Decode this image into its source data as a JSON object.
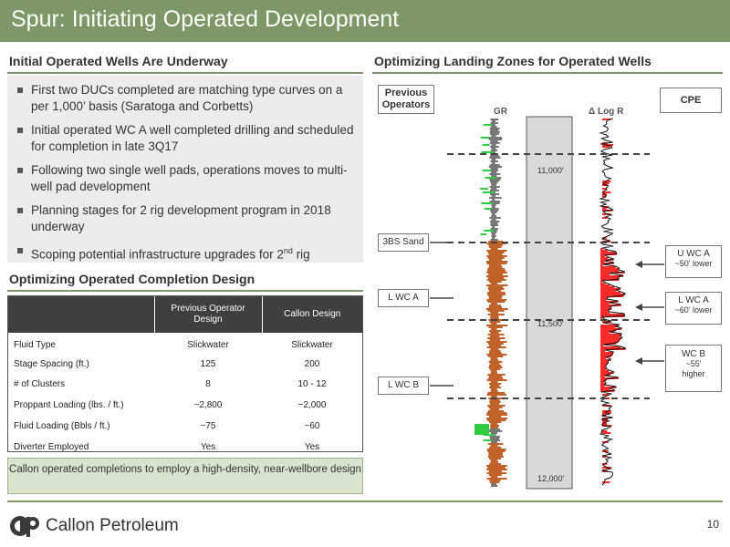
{
  "header": {
    "title": "Spur: Initiating Operated Development"
  },
  "left": {
    "section1_title": "Initial Operated Wells Are Underway",
    "bullets": [
      "First two DUCs completed are matching type curves on a per 1,000’ basis (Saratoga and Corbetts)",
      "Initial operated WC A well completed drilling and scheduled for completion in late 3Q17",
      "Following two single well pads, operations moves to multi-well pad development",
      "Planning stages for 2 rig development program in 2018 underway"
    ],
    "bullet5_pre": "Scoping potential infrastructure upgrades for 2",
    "bullet5_sup": "nd",
    "bullet5_post": " rig",
    "section2_title": "Optimizing Operated Completion Design",
    "table": {
      "col1": "Previous Operator Design",
      "col2": "Callon Design",
      "rows": [
        [
          "Fluid Type",
          "Slickwater",
          "Slickwater"
        ],
        [
          "Stage Spacing (ft.)",
          "125",
          "200"
        ],
        [
          "# of Clusters",
          "8",
          "10 - 12"
        ],
        [
          "Proppant Loading (lbs. / ft.)",
          "~2,800",
          "~2,000"
        ],
        [
          "Fluid Loading (Bbls / ft.)",
          "~75",
          "~60"
        ],
        [
          "Diverter Employed",
          "Yes",
          "Yes"
        ]
      ]
    },
    "callout": "Callon operated completions to employ a high-density, near-wellbore design"
  },
  "right": {
    "section_title": "Optimizing Landing Zones for Operated Wells",
    "previous_operators": "Previous Operators",
    "cpe": "CPE",
    "gr_label": "GR",
    "logr_label": "Δ Log R",
    "depths": [
      "11,000'",
      "11,500'",
      "12,000'"
    ],
    "left_labels": [
      "3BS Sand",
      "L WC A",
      "L WC B"
    ],
    "right_labels": [
      {
        "name": "U WC A",
        "note": "~50' lower"
      },
      {
        "name": "L WC A",
        "note": "~60' lower"
      },
      {
        "name": "WC B",
        "note": "~55' higher"
      }
    ]
  },
  "footer": {
    "company": "Callon Petroleum",
    "page": "10"
  },
  "colors": {
    "accent": "#7d9866",
    "gr_sand": "#c0622a",
    "gr_green": "#2ecc40",
    "logr_red": "#ff2a2a"
  }
}
